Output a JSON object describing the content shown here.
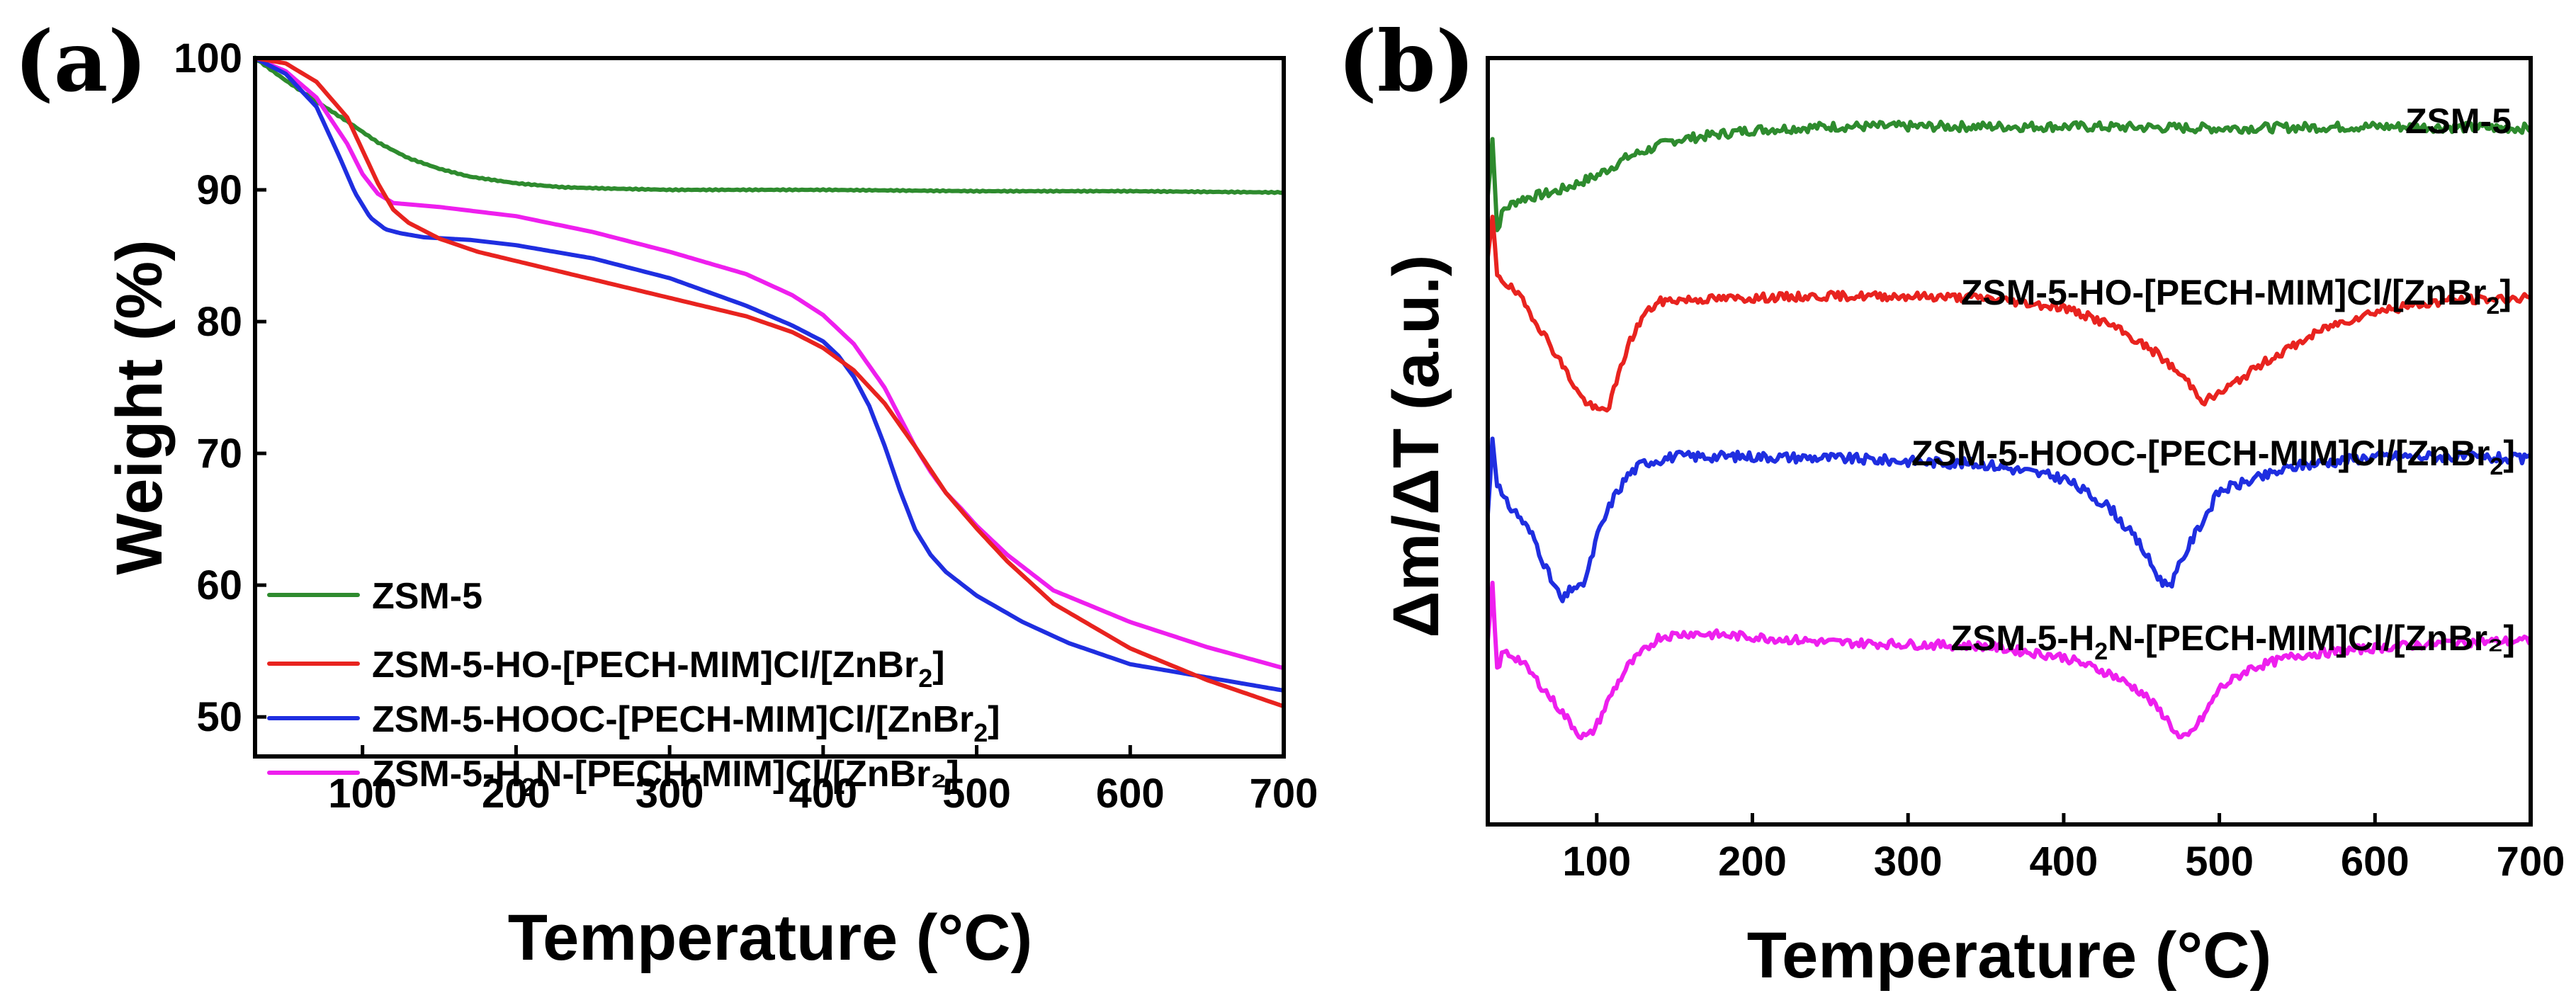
{
  "chart_data": [
    {
      "type": "line",
      "panel_label": "(a)",
      "xlabel": "Temperature (°C)",
      "ylabel": "Weight (%)",
      "xlim": [
        30,
        700
      ],
      "ylim": [
        47,
        100
      ],
      "xticks": [
        100,
        200,
        300,
        400,
        500,
        600,
        700
      ],
      "yticks": [
        50,
        60,
        70,
        80,
        90,
        100
      ],
      "legend_position": "bottom-left",
      "series": [
        {
          "name": "ZSM-5",
          "sub": null,
          "tail": null,
          "color": "#2e8b2e",
          "x": [
            30,
            50,
            70,
            90,
            110,
            130,
            150,
            170,
            200,
            230,
            260,
            300,
            400,
            500,
            600,
            700
          ],
          "y": [
            100,
            98.3,
            96.7,
            95.2,
            93.6,
            92.4,
            91.6,
            91.0,
            90.5,
            90.2,
            90.1,
            90.0,
            90.0,
            89.9,
            89.9,
            89.8
          ]
        },
        {
          "name": "ZSM-5-HO-[PECH-MIM]Cl/[ZnBr",
          "sub": "2",
          "tail": "]",
          "color": "#e8231f",
          "x": [
            30,
            50,
            70,
            90,
            100,
            110,
            120,
            130,
            150,
            175,
            200,
            250,
            300,
            350,
            380,
            400,
            420,
            440,
            460,
            480,
            500,
            520,
            550,
            600,
            650,
            700
          ],
          "y": [
            100,
            99.6,
            98.2,
            95.5,
            93.0,
            90.5,
            88.5,
            87.5,
            86.3,
            85.3,
            84.6,
            83.2,
            81.8,
            80.4,
            79.2,
            78.0,
            76.3,
            73.8,
            70.5,
            67.0,
            64.3,
            61.8,
            58.6,
            55.2,
            52.8,
            50.8
          ]
        },
        {
          "name": "ZSM-5-HOOC-[PECH-MIM]Cl/[ZnBr",
          "sub": "2",
          "tail": "]",
          "color": "#1f2ee0",
          "x": [
            30,
            50,
            70,
            85,
            95,
            105,
            115,
            125,
            140,
            170,
            200,
            250,
            300,
            350,
            380,
            400,
            410,
            420,
            430,
            440,
            450,
            460,
            470,
            480,
            500,
            530,
            560,
            600,
            650,
            700
          ],
          "y": [
            100,
            98.8,
            96.3,
            92.5,
            89.8,
            87.9,
            87.0,
            86.7,
            86.4,
            86.2,
            85.8,
            84.8,
            83.3,
            81.2,
            79.7,
            78.5,
            77.4,
            75.8,
            73.6,
            70.6,
            67.2,
            64.2,
            62.3,
            61.0,
            59.2,
            57.2,
            55.6,
            54.0,
            53.0,
            52.0
          ]
        },
        {
          "name": "ZSM-5-H",
          "sub": "2",
          "tail": "N-[PECH-MIM]Cl/[ZnBr₂]",
          "color": "#ee1fee",
          "x": [
            30,
            50,
            70,
            90,
            100,
            110,
            120,
            130,
            150,
            200,
            250,
            300,
            350,
            380,
            400,
            420,
            440,
            460,
            470,
            480,
            490,
            500,
            520,
            550,
            600,
            650,
            700
          ],
          "y": [
            100,
            99.0,
            97.0,
            93.5,
            91.2,
            89.7,
            89.0,
            88.9,
            88.7,
            88.0,
            86.8,
            85.3,
            83.6,
            82.0,
            80.5,
            78.3,
            75.0,
            70.5,
            68.6,
            67.0,
            65.8,
            64.5,
            62.3,
            59.6,
            57.2,
            55.3,
            53.7
          ]
        }
      ]
    },
    {
      "type": "line",
      "panel_label": "(b)",
      "xlabel": "Temperature (°C)",
      "ylabel": "Δm/ΔT (a.u.)",
      "xlim": [
        30,
        700
      ],
      "xticks": [
        100,
        200,
        300,
        400,
        500,
        600,
        700
      ],
      "y_units": "arbitrary, offset for clarity",
      "series": [
        {
          "name": "ZSM-5",
          "sub": null,
          "tail": null,
          "color": "#2e8b2e",
          "seed": 7,
          "noise": 0.28,
          "x": [
            30,
            33,
            36,
            40,
            50,
            75,
            100,
            120,
            150,
            200,
            250,
            300,
            400,
            500,
            600,
            700
          ],
          "y": [
            2.0,
            5.5,
            0.0,
            1.2,
            1.8,
            2.3,
            3.2,
            4.3,
            5.3,
            5.9,
            6.1,
            6.1,
            6.1,
            6.0,
            6.1,
            6.0
          ]
        },
        {
          "name": "ZSM-5-HO-[PECH-MIM]Cl/[ZnBr",
          "sub": "2",
          "tail": "]",
          "color": "#e8231f",
          "seed": 19,
          "noise": 0.22,
          "x": [
            30,
            33,
            36,
            40,
            50,
            60,
            75,
            90,
            100,
            107,
            112,
            120,
            130,
            140,
            150,
            200,
            250,
            300,
            350,
            400,
            430,
            460,
            480,
            490,
            500,
            530,
            570,
            600,
            650,
            700
          ],
          "y": [
            8.0,
            10.0,
            7.2,
            6.8,
            6.0,
            4.8,
            2.8,
            0.7,
            0.0,
            0.1,
            1.3,
            3.4,
            5.0,
            5.7,
            5.8,
            5.9,
            6.0,
            6.0,
            5.9,
            5.4,
            4.5,
            3.0,
            1.5,
            0.5,
            0.9,
            2.6,
            4.4,
            5.2,
            5.8,
            5.9
          ]
        },
        {
          "name": "ZSM-5-HOOC-[PECH-MIM]Cl/[ZnBr",
          "sub": "2",
          "tail": "]",
          "color": "#1f2ee0",
          "seed": 31,
          "noise": 0.33,
          "x": [
            30,
            33,
            36,
            40,
            50,
            60,
            70,
            78,
            85,
            90,
            95,
            100,
            110,
            120,
            130,
            150,
            200,
            250,
            300,
            350,
            400,
            430,
            450,
            460,
            465,
            470,
            480,
            500,
            550,
            600,
            650,
            700
          ],
          "y": [
            6.0,
            11.0,
            8.2,
            7.0,
            6.0,
            4.5,
            2.0,
            0.5,
            1.5,
            1.3,
            2.6,
            4.6,
            7.0,
            8.6,
            9.4,
            9.8,
            9.8,
            9.7,
            9.5,
            9.3,
            8.4,
            6.5,
            4.0,
            2.2,
            1.6,
            1.8,
            4.0,
            7.6,
            9.2,
            9.8,
            9.8,
            9.6
          ]
        },
        {
          "name": "ZSM-5-H",
          "sub": "2",
          "tail": "N-[PECH-MIM]Cl/[ZnBr₂]",
          "color": "#ee1fee",
          "seed": 43,
          "noise": 0.24,
          "x": [
            30,
            33,
            36,
            40,
            50,
            60,
            75,
            90,
            95,
            100,
            110,
            120,
            140,
            160,
            200,
            250,
            300,
            350,
            400,
            430,
            450,
            465,
            475,
            480,
            490,
            500,
            520,
            550,
            600,
            650,
            700
          ],
          "y": [
            5.5,
            8.5,
            4.0,
            5.0,
            4.6,
            3.6,
            2.0,
            0.4,
            0.4,
            1.0,
            2.8,
            4.2,
            5.8,
            6.0,
            5.8,
            5.5,
            5.4,
            5.3,
            4.7,
            3.8,
            2.8,
            1.5,
            0.2,
            0.4,
            1.5,
            3.0,
            4.1,
            4.8,
            5.2,
            5.5,
            5.6
          ]
        }
      ]
    }
  ]
}
